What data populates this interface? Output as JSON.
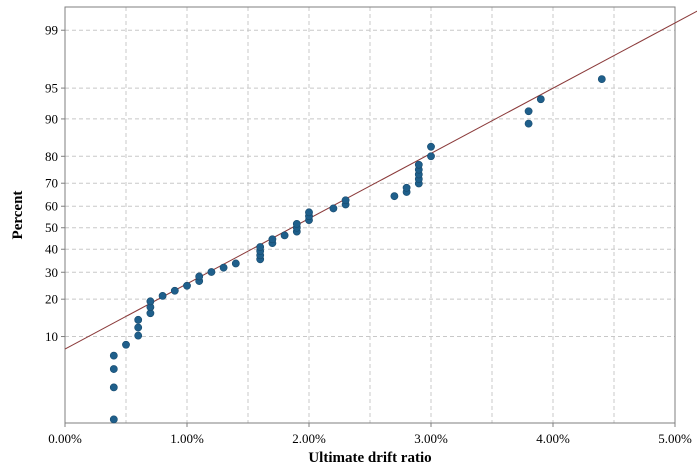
{
  "chart_data": {
    "type": "scatter",
    "title": "",
    "xlabel": "Ultimate drift ratio",
    "ylabel": "Percent",
    "xlim": [
      0,
      5
    ],
    "x_unit": "%",
    "x_ticks": [
      0,
      1,
      2,
      3,
      4,
      5
    ],
    "x_tick_labels": [
      "0.00%",
      "1.00%",
      "2.00%",
      "3.00%",
      "4.00%",
      "5.00%"
    ],
    "y_scale": "normal-probability",
    "ylim_z": [
      -2.3,
      2.6
    ],
    "y_ticks": [
      10,
      20,
      30,
      40,
      50,
      60,
      70,
      80,
      90,
      95,
      99
    ],
    "y_tick_labels": [
      "10",
      "20",
      "30",
      "40",
      "50",
      "60",
      "70",
      "80",
      "90",
      "95",
      "99"
    ],
    "grid": true,
    "colors": {
      "points": "#1f5f8b",
      "fit_line": "#8b3a3a",
      "grid": "#c8c8c8",
      "frame": "#7f7f7f"
    },
    "fit_line": {
      "x_at_percent_50": 1.86,
      "z_per_percent_point": 0.768
    },
    "points": [
      {
        "x": 0.4,
        "y": 1.2
      },
      {
        "x": 0.4,
        "y": 3.0
      },
      {
        "x": 0.4,
        "y": 4.8
      },
      {
        "x": 0.4,
        "y": 6.6
      },
      {
        "x": 0.5,
        "y": 8.4
      },
      {
        "x": 0.6,
        "y": 10.2
      },
      {
        "x": 0.6,
        "y": 12.0
      },
      {
        "x": 0.6,
        "y": 13.9
      },
      {
        "x": 0.7,
        "y": 15.7
      },
      {
        "x": 0.7,
        "y": 17.5
      },
      {
        "x": 0.7,
        "y": 19.3
      },
      {
        "x": 0.8,
        "y": 21.1
      },
      {
        "x": 0.9,
        "y": 22.9
      },
      {
        "x": 1.0,
        "y": 24.7
      },
      {
        "x": 1.1,
        "y": 26.5
      },
      {
        "x": 1.1,
        "y": 28.3
      },
      {
        "x": 1.2,
        "y": 30.1
      },
      {
        "x": 1.3,
        "y": 31.9
      },
      {
        "x": 1.4,
        "y": 33.7
      },
      {
        "x": 1.6,
        "y": 35.5
      },
      {
        "x": 1.6,
        "y": 37.3
      },
      {
        "x": 1.6,
        "y": 39.2
      },
      {
        "x": 1.6,
        "y": 41.0
      },
      {
        "x": 1.7,
        "y": 42.8
      },
      {
        "x": 1.7,
        "y": 44.6
      },
      {
        "x": 1.8,
        "y": 46.4
      },
      {
        "x": 1.9,
        "y": 48.2
      },
      {
        "x": 1.9,
        "y": 50.0
      },
      {
        "x": 1.9,
        "y": 51.8
      },
      {
        "x": 2.0,
        "y": 53.6
      },
      {
        "x": 2.0,
        "y": 55.4
      },
      {
        "x": 2.0,
        "y": 57.2
      },
      {
        "x": 2.2,
        "y": 59.0
      },
      {
        "x": 2.3,
        "y": 60.8
      },
      {
        "x": 2.3,
        "y": 62.7
      },
      {
        "x": 2.7,
        "y": 64.5
      },
      {
        "x": 2.8,
        "y": 66.3
      },
      {
        "x": 2.8,
        "y": 68.1
      },
      {
        "x": 2.9,
        "y": 69.9
      },
      {
        "x": 2.9,
        "y": 71.7
      },
      {
        "x": 2.9,
        "y": 73.5
      },
      {
        "x": 2.9,
        "y": 75.3
      },
      {
        "x": 2.9,
        "y": 77.1
      },
      {
        "x": 3.0,
        "y": 80.0
      },
      {
        "x": 3.0,
        "y": 83.0
      },
      {
        "x": 3.8,
        "y": 89.0
      },
      {
        "x": 3.8,
        "y": 91.5
      },
      {
        "x": 3.9,
        "y": 93.5
      },
      {
        "x": 4.4,
        "y": 96.0
      }
    ]
  }
}
